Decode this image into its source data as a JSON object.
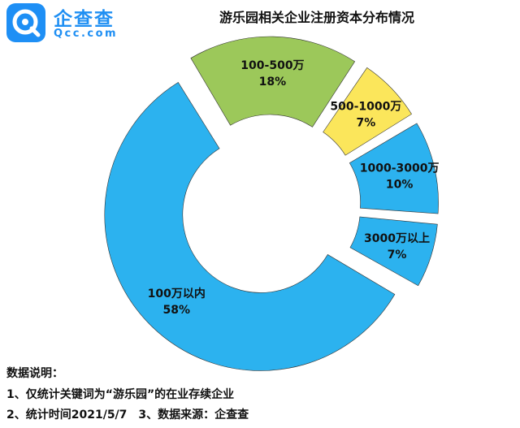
{
  "logo": {
    "name": "企查查",
    "domain": "Qcc.com",
    "mark_color": "#1e8ff5"
  },
  "title": "游乐园相关企业注册资本分布情况",
  "chart_data": {
    "type": "pie",
    "variant": "donut-exploded",
    "title": "游乐园相关企业注册资本分布情况",
    "slices": [
      {
        "name": "100万以内",
        "value": 58,
        "label": "58%",
        "color": "#2cb2ef"
      },
      {
        "name": "100-500万",
        "value": 18,
        "label": "18%",
        "color": "#9cc85a"
      },
      {
        "name": "500-1000万",
        "value": 7,
        "label": "7%",
        "color": "#fbe65b"
      },
      {
        "name": "1000-3000万",
        "value": 10,
        "label": "10%",
        "color": "#2cb2ef"
      },
      {
        "name": "3000万以上",
        "value": 7,
        "label": "7%",
        "color": "#2cb2ef"
      }
    ],
    "legend": "none"
  },
  "notes": {
    "heading": "数据说明：",
    "line1": "1、仅统计关键词为“游乐园”的在业存续企业",
    "line2a": "2、统计时间2021/5/7",
    "line2b": "3、数据来源：企查查"
  }
}
